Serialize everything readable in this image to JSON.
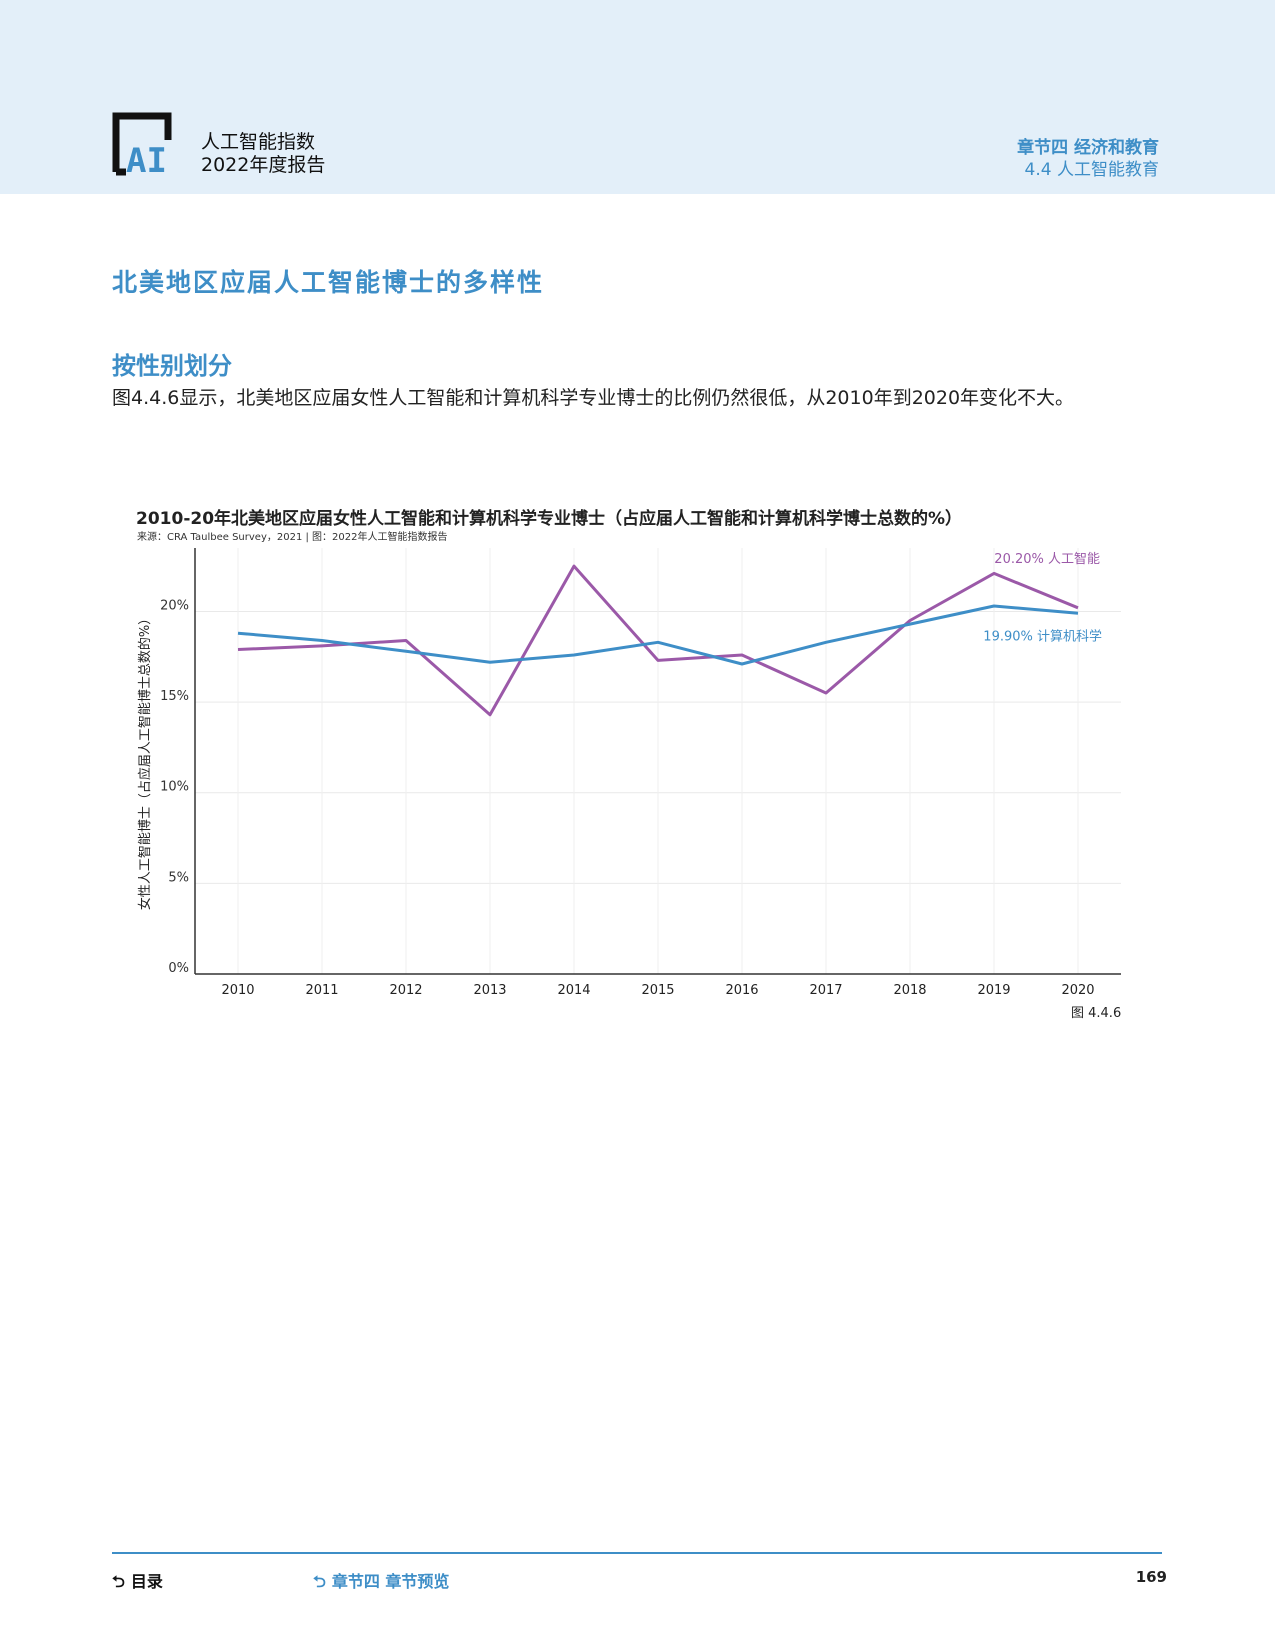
{
  "header": {
    "logo_text": "AI",
    "report_name_line1": "人工智能指数",
    "report_name_line2": "2022年度报告",
    "chapter_title": "章节四 经济和教育",
    "chapter_sub": "4.4 人工智能教育"
  },
  "section_title": "北美地区应届人工智能博士的多样性",
  "subsection_title": "按性别划分",
  "body_text": "图4.4.6显示，北美地区应届女性人工智能和计算机科学专业博士的比例仍然很低，从2010年到2020年变化不大。",
  "figure_label": "图 4.4.6",
  "chart_data": {
    "type": "line",
    "title": "2010-20年北美地区应届女性人工智能和计算机科学专业博士（占应届人工智能和计算机科学博士总数的%）",
    "source": "来源：CRA Taulbee Survey，2021 | 图：2022年人工智能指数报告",
    "ylabel": "女性人工智能博士（占应届人工智能博士总数的%）",
    "xlabel": "",
    "x": [
      2010,
      2011,
      2012,
      2013,
      2014,
      2015,
      2016,
      2017,
      2018,
      2019,
      2020
    ],
    "x_tick_labels": [
      "2010",
      "2011",
      "2012",
      "2013",
      "2014",
      "2015",
      "2016",
      "2017",
      "2018",
      "2019",
      "2020"
    ],
    "y_ticks": [
      0,
      5,
      10,
      15,
      20
    ],
    "y_tick_labels": [
      "0%",
      "5%",
      "10%",
      "15%",
      "20%"
    ],
    "ylim": [
      0,
      23.5
    ],
    "grid": true,
    "series": [
      {
        "name": "人工智能",
        "color": "#9b59a8",
        "values": [
          17.9,
          18.1,
          18.4,
          14.3,
          22.5,
          17.3,
          17.6,
          15.5,
          19.5,
          22.1,
          20.2
        ],
        "end_label": "20.20% 人工智能"
      },
      {
        "name": "计算机科学",
        "color": "#3e8ec7",
        "values": [
          18.8,
          18.4,
          17.8,
          17.2,
          17.6,
          18.3,
          17.1,
          18.3,
          19.3,
          20.3,
          19.9
        ],
        "end_label": "19.90% 计算机科学"
      }
    ]
  },
  "footer": {
    "toc_label": "目录",
    "chapter_preview_label": "章节四 章节预览",
    "page_number": "169"
  }
}
